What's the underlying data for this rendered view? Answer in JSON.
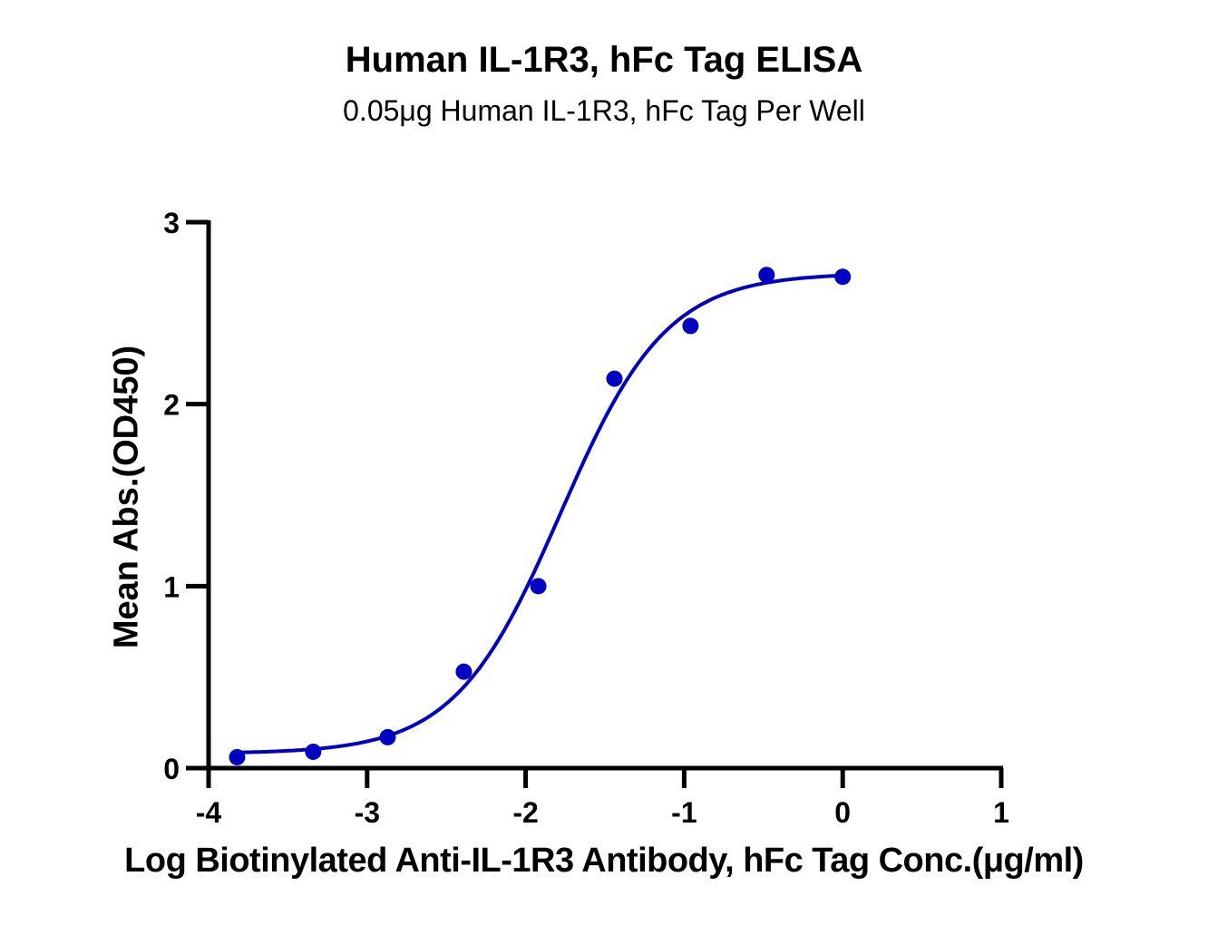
{
  "chart_data": {
    "type": "scatter",
    "title": "Human IL-1R3, hFc Tag ELISA",
    "subtitle": "0.05μg Human IL-1R3, hFc Tag Per Well",
    "xlabel": "Log Biotinylated Anti-IL-1R3 Antibody, hFc Tag Conc.(μg/ml)",
    "ylabel": "Mean Abs.(OD450)",
    "xlim": [
      -4,
      1
    ],
    "ylim": [
      0,
      3
    ],
    "x_ticks": [
      "-4",
      "-3",
      "-2",
      "-1",
      "0",
      "1"
    ],
    "y_ticks": [
      "0",
      "1",
      "2",
      "3"
    ],
    "grid": false,
    "legend": null,
    "series": [
      {
        "name": "Mean Abs.",
        "color": "#0000c0",
        "marker": "circle",
        "x": [
          -3.82,
          -3.34,
          -2.87,
          -2.39,
          -1.92,
          -1.44,
          -0.96,
          -0.48,
          0.0
        ],
        "y": [
          0.06,
          0.09,
          0.17,
          0.53,
          1.0,
          2.14,
          2.43,
          2.71,
          2.7
        ]
      }
    ],
    "fit_curve": {
      "type": "4PL sigmoid",
      "color": "#0000c0",
      "bottom": 0.08,
      "top": 2.72,
      "log_ec50": -1.78,
      "hill_slope": 1.3
    }
  }
}
